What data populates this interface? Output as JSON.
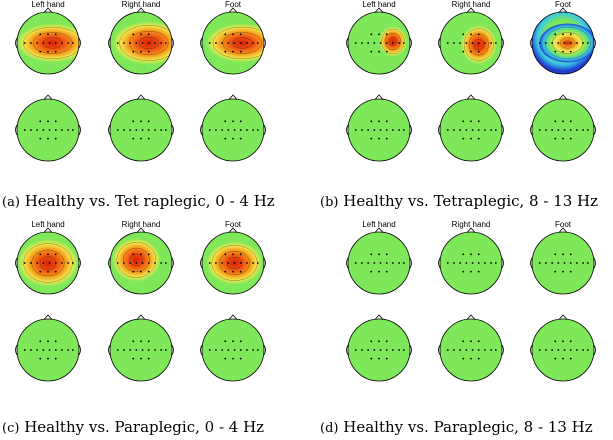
{
  "figure": {
    "panels": [
      {
        "id": "a",
        "label": "(a)",
        "caption": "Healthy vs. Tet raplegic, 0 - 4 Hz",
        "columns": [
          "Left hand",
          "Right hand",
          "Foot"
        ],
        "rows": [
          [
            "activation",
            "activation",
            "activation"
          ],
          [
            "flat",
            "flat",
            "flat"
          ]
        ]
      },
      {
        "id": "b",
        "label": "(b)",
        "caption": "Healthy vs. Tetraplegic, 8 - 13 Hz",
        "columns": [
          "Left hand",
          "Right hand",
          "Foot"
        ],
        "rows": [
          [
            "activation",
            "activation",
            "activation"
          ],
          [
            "flat",
            "flat",
            "flat"
          ]
        ]
      },
      {
        "id": "c",
        "label": "(c)",
        "caption": "Healthy vs. Paraplegic, 0 - 4 Hz",
        "columns": [
          "Left hand",
          "Right hand",
          "Foot"
        ],
        "rows": [
          [
            "activation",
            "activation",
            "activation"
          ],
          [
            "flat",
            "flat",
            "flat"
          ]
        ]
      },
      {
        "id": "d",
        "label": "(d)",
        "caption": "Healthy vs. Paraplegic, 8 - 13 Hz",
        "columns": [
          "Left hand",
          "Right hand",
          "Foot"
        ],
        "rows": [
          [
            "flat",
            "flat",
            "flat"
          ],
          [
            "flat",
            "flat",
            "flat"
          ]
        ]
      }
    ],
    "colors": {
      "flat": "#7ee85a",
      "hot": "#d81e05",
      "warm": "#f6a21e",
      "yellow": "#f2e94e",
      "cool": "#39c6e6",
      "cold": "#1f3fd0",
      "outline": "#000000",
      "electrode": "#000000"
    }
  }
}
